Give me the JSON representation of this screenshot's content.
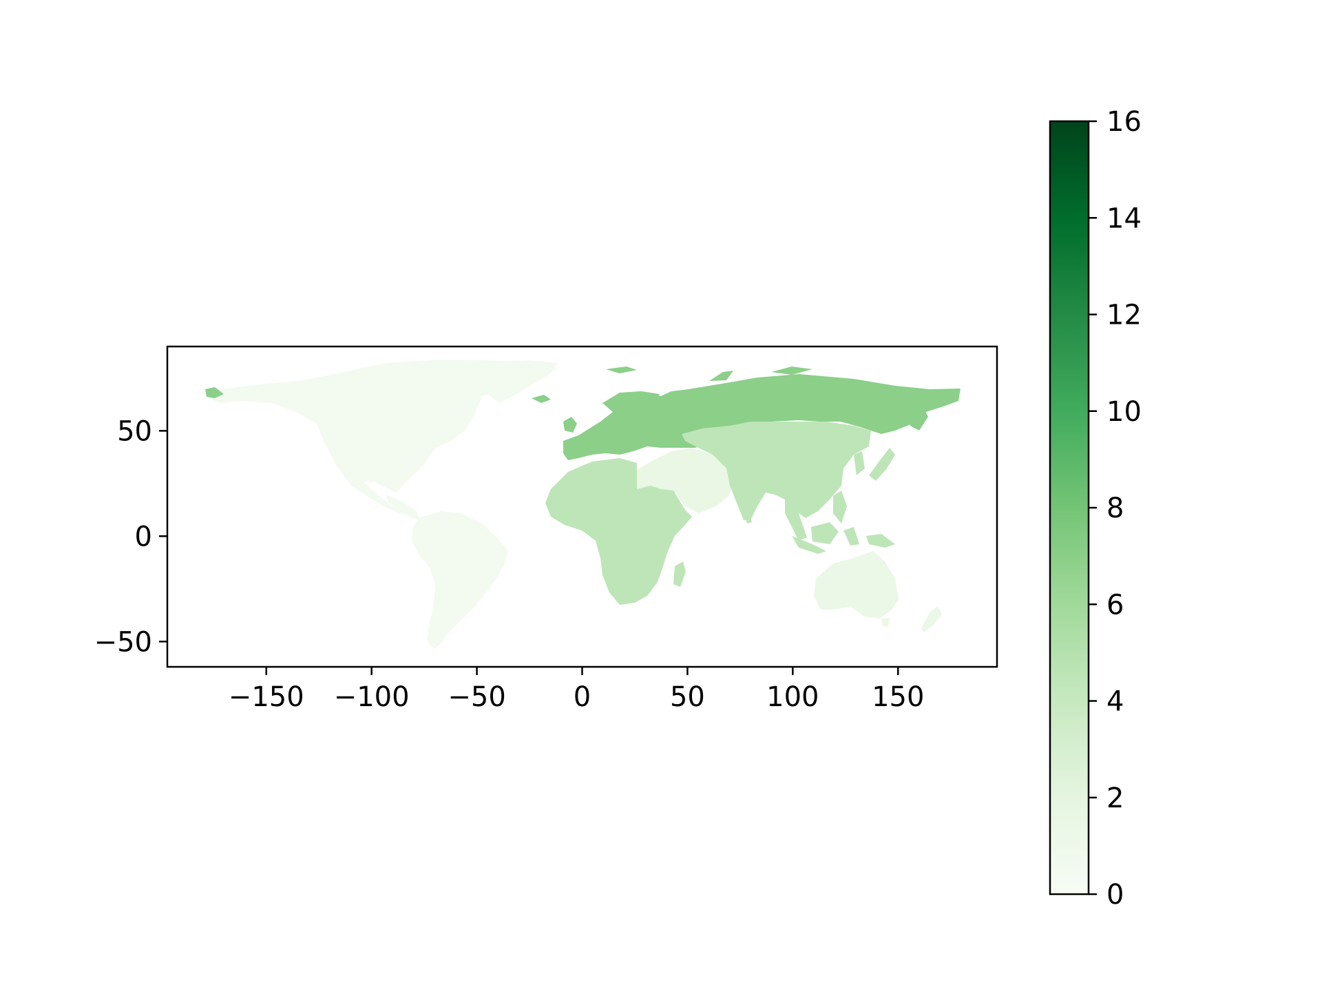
{
  "chart_data": {
    "type": "choropleth",
    "xlim": [
      -197,
      197
    ],
    "ylim": [
      -62,
      90
    ],
    "x_ticks": [
      -150,
      -100,
      -50,
      0,
      50,
      100,
      150
    ],
    "y_ticks": [
      -50,
      0,
      50
    ],
    "x_tick_labels": [
      "−150",
      "−100",
      "−50",
      "0",
      "50",
      "100",
      "150"
    ],
    "y_tick_labels": [
      "−50",
      "0",
      "50"
    ],
    "colorbar": {
      "colormap": "Greens",
      "range": [
        0,
        16
      ],
      "ticks": [
        0,
        2,
        4,
        6,
        8,
        10,
        12,
        14,
        16
      ],
      "tick_labels": [
        "0",
        "2",
        "4",
        "6",
        "8",
        "10",
        "12",
        "14",
        "16"
      ]
    },
    "regions": [
      {
        "region": "North America",
        "value": 0.5
      },
      {
        "region": "South America",
        "value": 0.5
      },
      {
        "region": "Europe and Russia",
        "value": 7
      },
      {
        "region": "Africa",
        "value": 4.5
      },
      {
        "region": "Middle East",
        "value": 1.5
      },
      {
        "region": "Asia",
        "value": 4.5
      },
      {
        "region": "Oceania",
        "value": 1.3
      }
    ],
    "grid": false,
    "title": "",
    "xlabel": "",
    "ylabel": ""
  }
}
